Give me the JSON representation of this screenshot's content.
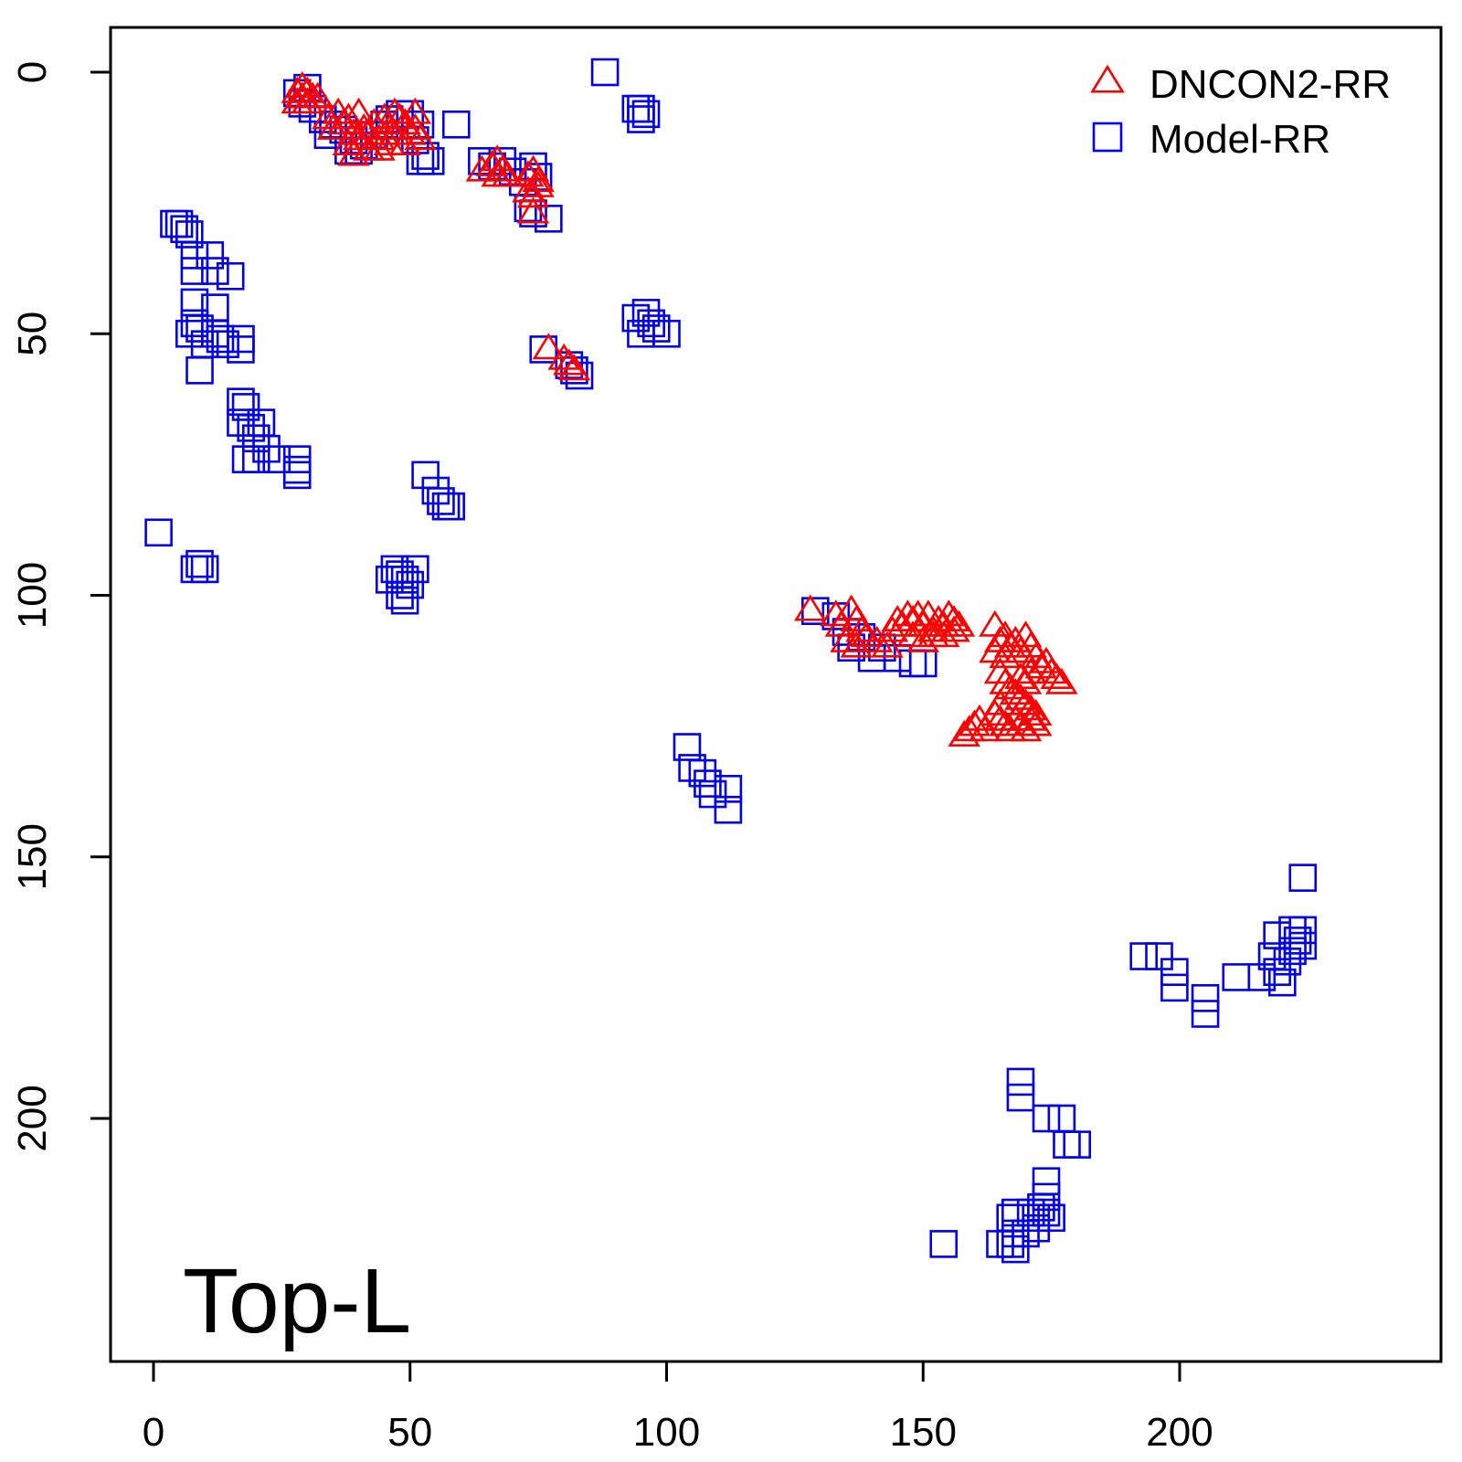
{
  "chart_data": {
    "type": "scatter",
    "title": "",
    "xlabel": "",
    "ylabel": "",
    "xlim": [
      -8,
      246
    ],
    "ylim": [
      -9,
      246
    ],
    "y_reversed": true,
    "x_ticks": [
      0,
      50,
      100,
      150,
      200
    ],
    "y_ticks": [
      0,
      50,
      100,
      150,
      200
    ],
    "grid": false,
    "legend_position": "top-right",
    "panel_label": "Top-L",
    "series": [
      {
        "name": "DNCON2-RR",
        "marker": "triangle",
        "color": "#ff0000",
        "points": [
          [
            28,
            4
          ],
          [
            29,
            3
          ],
          [
            30,
            4
          ],
          [
            29,
            5
          ],
          [
            28,
            6
          ],
          [
            31,
            5
          ],
          [
            30,
            6
          ],
          [
            32,
            5
          ],
          [
            34,
            9
          ],
          [
            36,
            8
          ],
          [
            38,
            9
          ],
          [
            40,
            8
          ],
          [
            35,
            11
          ],
          [
            37,
            10
          ],
          [
            39,
            12
          ],
          [
            41,
            11
          ],
          [
            38,
            14
          ],
          [
            40,
            13
          ],
          [
            42,
            12
          ],
          [
            44,
            13
          ],
          [
            43,
            10
          ],
          [
            45,
            9
          ],
          [
            46,
            11
          ],
          [
            47,
            8
          ],
          [
            48,
            9
          ],
          [
            49,
            10
          ],
          [
            50,
            12
          ],
          [
            51,
            11
          ],
          [
            52,
            13
          ],
          [
            46,
            14
          ],
          [
            44,
            15
          ],
          [
            49,
            14
          ],
          [
            51,
            8
          ],
          [
            47,
            12
          ],
          [
            42,
            15
          ],
          [
            39,
            16
          ],
          [
            64,
            19
          ],
          [
            66,
            18
          ],
          [
            67,
            17
          ],
          [
            68,
            19
          ],
          [
            69,
            20
          ],
          [
            67,
            20
          ],
          [
            73,
            20
          ],
          [
            74,
            19
          ],
          [
            75,
            21
          ],
          [
            73,
            23
          ],
          [
            74,
            24
          ],
          [
            75,
            22
          ],
          [
            74,
            27
          ],
          [
            77,
            53
          ],
          [
            80,
            55
          ],
          [
            81,
            56
          ],
          [
            82,
            57
          ],
          [
            128,
            103
          ],
          [
            133,
            104
          ],
          [
            134,
            106
          ],
          [
            136,
            103
          ],
          [
            137,
            105
          ],
          [
            138,
            107
          ],
          [
            135,
            109
          ],
          [
            137,
            110
          ],
          [
            139,
            108
          ],
          [
            141,
            109
          ],
          [
            143,
            110
          ],
          [
            144,
            107
          ],
          [
            145,
            105
          ],
          [
            146,
            106
          ],
          [
            147,
            104
          ],
          [
            148,
            105
          ],
          [
            149,
            104
          ],
          [
            150,
            106
          ],
          [
            151,
            104
          ],
          [
            152,
            107
          ],
          [
            153,
            105
          ],
          [
            154,
            106
          ],
          [
            155,
            104
          ],
          [
            156,
            105
          ],
          [
            157,
            106
          ],
          [
            148,
            108
          ],
          [
            150,
            109
          ],
          [
            152,
            108
          ],
          [
            154,
            108
          ],
          [
            156,
            107
          ],
          [
            164,
            106
          ],
          [
            165,
            109
          ],
          [
            166,
            108
          ],
          [
            164,
            111
          ],
          [
            166,
            112
          ],
          [
            167,
            110
          ],
          [
            168,
            109
          ],
          [
            169,
            111
          ],
          [
            170,
            108
          ],
          [
            171,
            110
          ],
          [
            172,
            112
          ],
          [
            173,
            114
          ],
          [
            174,
            113
          ],
          [
            175,
            115
          ],
          [
            176,
            116
          ],
          [
            177,
            117
          ],
          [
            165,
            115
          ],
          [
            166,
            117
          ],
          [
            167,
            118
          ],
          [
            168,
            119
          ],
          [
            169,
            120
          ],
          [
            170,
            121
          ],
          [
            171,
            122
          ],
          [
            172,
            123
          ],
          [
            165,
            121
          ],
          [
            164,
            123
          ],
          [
            165,
            124
          ],
          [
            166,
            125
          ],
          [
            167,
            126
          ],
          [
            168,
            124
          ],
          [
            169,
            125
          ],
          [
            170,
            126
          ],
          [
            171,
            124
          ],
          [
            172,
            125
          ],
          [
            158,
            127
          ],
          [
            159,
            126
          ],
          [
            160,
            125
          ],
          [
            161,
            124
          ],
          [
            162,
            126
          ],
          [
            169,
            116
          ],
          [
            170,
            117
          ],
          [
            171,
            115
          ]
        ]
      },
      {
        "name": "Model-RR",
        "marker": "square",
        "color": "#0000ee",
        "points": [
          [
            28,
            4
          ],
          [
            30,
            3
          ],
          [
            29,
            6
          ],
          [
            31,
            7
          ],
          [
            33,
            9
          ],
          [
            35,
            10
          ],
          [
            34,
            12
          ],
          [
            37,
            11
          ],
          [
            39,
            13
          ],
          [
            41,
            14
          ],
          [
            38,
            15
          ],
          [
            40,
            15
          ],
          [
            43,
            12
          ],
          [
            45,
            10
          ],
          [
            46,
            9
          ],
          [
            48,
            8
          ],
          [
            50,
            8
          ],
          [
            52,
            10
          ],
          [
            51,
            13
          ],
          [
            53,
            16
          ],
          [
            54,
            17
          ],
          [
            52,
            17
          ],
          [
            59,
            10
          ],
          [
            88,
            0
          ],
          [
            94,
            7
          ],
          [
            95,
            9
          ],
          [
            96,
            8
          ],
          [
            95,
            7
          ],
          [
            64,
            17
          ],
          [
            66,
            18
          ],
          [
            68,
            17
          ],
          [
            70,
            19
          ],
          [
            72,
            21
          ],
          [
            74,
            18
          ],
          [
            75,
            20
          ],
          [
            73,
            26
          ],
          [
            74,
            27
          ],
          [
            77,
            28
          ],
          [
            4,
            29
          ],
          [
            5,
            29
          ],
          [
            6,
            30
          ],
          [
            7,
            31
          ],
          [
            8,
            35
          ],
          [
            8,
            38
          ],
          [
            11,
            35
          ],
          [
            12,
            38
          ],
          [
            15,
            39
          ],
          [
            8,
            44
          ],
          [
            12,
            45
          ],
          [
            8,
            48
          ],
          [
            7,
            50
          ],
          [
            9,
            49
          ],
          [
            10,
            52
          ],
          [
            12,
            50
          ],
          [
            13,
            51
          ],
          [
            14,
            52
          ],
          [
            9,
            57
          ],
          [
            17,
            53
          ],
          [
            17,
            51
          ],
          [
            17,
            63
          ],
          [
            18,
            64
          ],
          [
            17,
            67
          ],
          [
            19,
            68
          ],
          [
            21,
            67
          ],
          [
            20,
            70
          ],
          [
            22,
            72
          ],
          [
            18,
            74
          ],
          [
            20,
            74
          ],
          [
            24,
            74
          ],
          [
            28,
            74
          ],
          [
            28,
            76
          ],
          [
            28,
            77
          ],
          [
            1,
            88
          ],
          [
            8,
            95
          ],
          [
            9,
            94
          ],
          [
            10,
            95
          ],
          [
            53,
            77
          ],
          [
            55,
            80
          ],
          [
            56,
            82
          ],
          [
            57,
            83
          ],
          [
            58,
            83
          ],
          [
            46,
            97
          ],
          [
            47,
            95
          ],
          [
            48,
            96
          ],
          [
            49,
            97
          ],
          [
            50,
            98
          ],
          [
            51,
            95
          ],
          [
            48,
            100
          ],
          [
            49,
            101
          ],
          [
            94,
            47
          ],
          [
            95,
            50
          ],
          [
            96,
            46
          ],
          [
            97,
            48
          ],
          [
            98,
            49
          ],
          [
            100,
            50
          ],
          [
            76,
            53
          ],
          [
            81,
            56
          ],
          [
            82,
            57
          ],
          [
            83,
            58
          ],
          [
            129,
            103
          ],
          [
            133,
            104
          ],
          [
            135,
            107
          ],
          [
            136,
            110
          ],
          [
            138,
            108
          ],
          [
            140,
            112
          ],
          [
            142,
            110
          ],
          [
            145,
            112
          ],
          [
            148,
            113
          ],
          [
            150,
            113
          ],
          [
            104,
            129
          ],
          [
            105,
            133
          ],
          [
            107,
            134
          ],
          [
            108,
            136
          ],
          [
            109,
            138
          ],
          [
            112,
            137
          ],
          [
            112,
            141
          ],
          [
            224,
            154
          ],
          [
            193,
            169
          ],
          [
            196,
            169
          ],
          [
            199,
            172
          ],
          [
            199,
            175
          ],
          [
            205,
            177
          ],
          [
            205,
            180
          ],
          [
            211,
            173
          ],
          [
            216,
            173
          ],
          [
            218,
            169
          ],
          [
            219,
            172
          ],
          [
            220,
            174
          ],
          [
            221,
            170
          ],
          [
            222,
            168
          ],
          [
            223,
            166
          ],
          [
            224,
            167
          ],
          [
            222,
            164
          ],
          [
            224,
            164
          ],
          [
            219,
            165
          ],
          [
            169,
            193
          ],
          [
            169,
            196
          ],
          [
            174,
            200
          ],
          [
            177,
            200
          ],
          [
            178,
            205
          ],
          [
            180,
            205
          ],
          [
            174,
            212
          ],
          [
            174,
            215
          ],
          [
            173,
            217
          ],
          [
            172,
            219
          ],
          [
            172,
            221
          ],
          [
            170,
            222
          ],
          [
            168,
            222
          ],
          [
            167,
            224
          ],
          [
            165,
            224
          ],
          [
            167,
            219
          ],
          [
            168,
            218
          ],
          [
            171,
            218
          ],
          [
            174,
            218
          ],
          [
            175,
            219
          ],
          [
            154,
            224
          ],
          [
            168,
            225
          ]
        ]
      }
    ]
  }
}
